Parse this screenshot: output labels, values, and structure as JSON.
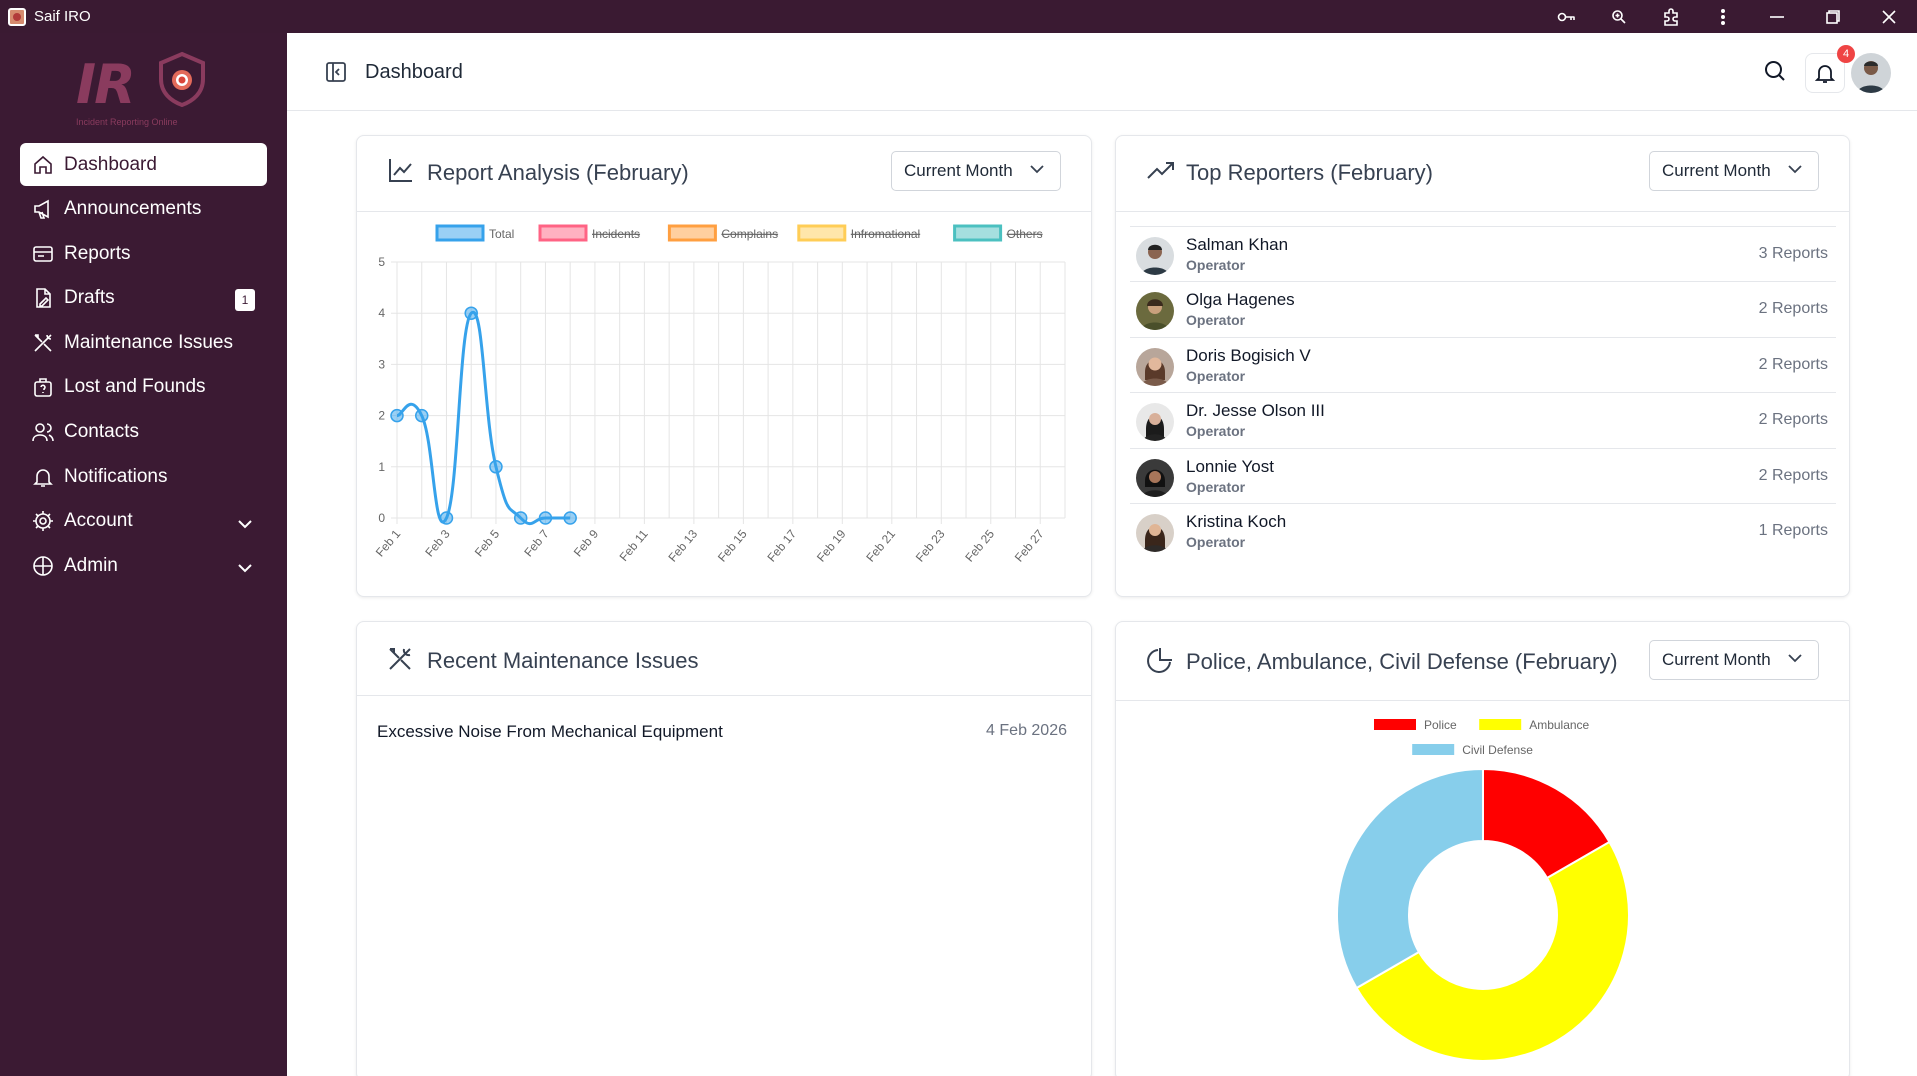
{
  "window": {
    "title": "Saif IRO"
  },
  "brand": {
    "logo_text": "IR",
    "tagline": "Incident Reporting Online"
  },
  "sidebar": {
    "items": [
      {
        "label": "Dashboard",
        "icon": "home-icon",
        "active": true
      },
      {
        "label": "Announcements",
        "icon": "megaphone-icon"
      },
      {
        "label": "Reports",
        "icon": "report-card-icon"
      },
      {
        "label": "Drafts",
        "icon": "draft-file-icon",
        "badge": "1"
      },
      {
        "label": "Maintenance Issues",
        "icon": "tools-icon"
      },
      {
        "label": "Lost and Founds",
        "icon": "lost-bag-icon"
      },
      {
        "label": "Contacts",
        "icon": "contacts-icon"
      },
      {
        "label": "Notifications",
        "icon": "bell-icon"
      },
      {
        "label": "Account",
        "icon": "gear-icon",
        "expandable": true
      },
      {
        "label": "Admin",
        "icon": "shield-icon",
        "expandable": true
      }
    ]
  },
  "header": {
    "title": "Dashboard",
    "notification_count": "4"
  },
  "report_analysis": {
    "title": "Report Analysis (February)",
    "filter": "Current Month"
  },
  "top_reporters": {
    "title": "Top Reporters (February)",
    "filter": "Current Month",
    "rows": [
      {
        "name": "Salman Khan",
        "role": "Operator",
        "count": "3 Reports"
      },
      {
        "name": "Olga Hagenes",
        "role": "Operator",
        "count": "2 Reports"
      },
      {
        "name": "Doris Bogisich V",
        "role": "Operator",
        "count": "2 Reports"
      },
      {
        "name": "Dr. Jesse Olson III",
        "role": "Operator",
        "count": "2 Reports"
      },
      {
        "name": "Lonnie Yost",
        "role": "Operator",
        "count": "2 Reports"
      },
      {
        "name": "Kristina Koch",
        "role": "Operator",
        "count": "1 Reports"
      }
    ]
  },
  "maintenance": {
    "title": "Recent Maintenance Issues",
    "items": [
      {
        "title": "Excessive Noise From Mechanical Equipment",
        "date": "4 Feb 2026"
      }
    ]
  },
  "emergency": {
    "title": "Police, Ambulance, Civil Defense (February)",
    "filter": "Current Month"
  },
  "chart_data": [
    {
      "type": "line",
      "legend": [
        {
          "name": "Total",
          "color": "#36a2eb",
          "hidden": false
        },
        {
          "name": "Incidents",
          "color": "#ff6384",
          "hidden": true
        },
        {
          "name": "Complains",
          "color": "#ff9f40",
          "hidden": true
        },
        {
          "name": "Infromational",
          "color": "#ffcd56",
          "hidden": true
        },
        {
          "name": "Others",
          "color": "#4bc0c0",
          "hidden": true
        }
      ],
      "x_ticks": [
        "Feb 1",
        "Feb 3",
        "Feb 5",
        "Feb 7",
        "Feb 9",
        "Feb 11",
        "Feb 13",
        "Feb 15",
        "Feb 17",
        "Feb 19",
        "Feb 21",
        "Feb 23",
        "Feb 25",
        "Feb 27"
      ],
      "y_ticks": [
        "0",
        "1",
        "2",
        "3",
        "4",
        "5"
      ],
      "ylim": [
        0,
        5
      ],
      "x_day_range": [
        1,
        28
      ],
      "series": [
        {
          "name": "Total",
          "color": "#36a2eb",
          "x_days": [
            1,
            2,
            3,
            4,
            5,
            6,
            7,
            8
          ],
          "values": [
            2,
            2,
            0,
            4,
            1,
            0,
            0,
            0
          ]
        }
      ],
      "grid": true,
      "legend_position": "top"
    },
    {
      "type": "pie",
      "donut": true,
      "legend_position": "top",
      "categories": [
        "Police",
        "Ambulance",
        "Civil Defense"
      ],
      "colors": [
        "#ff0000",
        "#ffff00",
        "#87ceeb"
      ],
      "values": [
        1,
        3,
        2
      ]
    }
  ]
}
